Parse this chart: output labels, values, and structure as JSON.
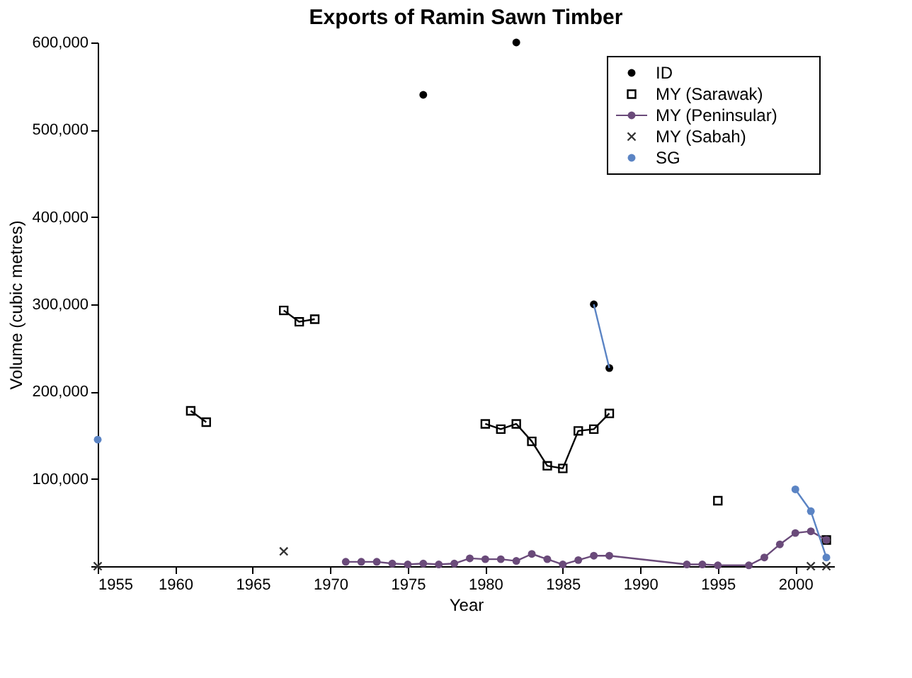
{
  "chart_data": {
    "type": "scatter",
    "title": "Exports of Ramin Sawn Timber",
    "xlabel": "Year",
    "ylabel": "Volume (cubic metres)",
    "xlim": [
      1955,
      2002.5
    ],
    "xticks": [
      1955,
      1960,
      1965,
      1970,
      1975,
      1980,
      1985,
      1990,
      1995,
      2000
    ],
    "ylim": [
      0,
      600000
    ],
    "yticks": [
      {
        "value": 0,
        "label": null
      },
      {
        "value": 100000,
        "label": "100,000"
      },
      {
        "value": 200000,
        "label": "200,000"
      },
      {
        "value": 300000,
        "label": "300,000"
      },
      {
        "value": 400000,
        "label": "400,000"
      },
      {
        "value": 500000,
        "label": "500,000"
      },
      {
        "value": 600000,
        "label": "600,000"
      }
    ],
    "grid": false,
    "legend": "top right",
    "series": [
      {
        "name": "ID",
        "marker": "circle",
        "color": "#000000",
        "x": [
          1976,
          1982,
          1987,
          1988
        ],
        "values": [
          540000,
          600000,
          300000,
          227000
        ]
      },
      {
        "name": "MY (Sarawak)",
        "marker": "square",
        "color": "#000000",
        "x": [
          1961,
          1962,
          1967,
          1968,
          1969,
          1980,
          1981,
          1982,
          1983,
          1984,
          1985,
          1986,
          1987,
          1988,
          1995,
          2002
        ],
        "values": [
          178000,
          165000,
          293000,
          280000,
          283000,
          163000,
          157000,
          163000,
          143000,
          115000,
          112000,
          155000,
          157000,
          175000,
          75000,
          30000
        ]
      },
      {
        "name": "MY (Peninsular)",
        "type": "line",
        "marker": "circle",
        "color": "#6a4a7a",
        "x": [
          1971,
          1972,
          1973,
          1974,
          1975,
          1976,
          1977,
          1978,
          1979,
          1980,
          1981,
          1982,
          1983,
          1984,
          1985,
          1986,
          1987,
          1988,
          1993,
          1994,
          1995,
          1997,
          1998,
          1999,
          2000,
          2001,
          2002
        ],
        "values": [
          5000,
          5000,
          5000,
          3000,
          2000,
          3000,
          2000,
          3000,
          9000,
          8000,
          8000,
          6000,
          14000,
          8000,
          2000,
          7000,
          12000,
          12000,
          2000,
          2000,
          1000,
          1000,
          10000,
          25000,
          38000,
          40000,
          30000
        ]
      },
      {
        "name": "MY (Sabah)",
        "marker": "cross",
        "color": "#333333",
        "x": [
          1955,
          1967,
          2001,
          2002
        ],
        "values": [
          0,
          17000,
          0,
          0
        ]
      },
      {
        "name": "SG",
        "marker": "circle",
        "color": "#5b84c4",
        "x": [
          1955,
          2000,
          2001,
          2002
        ],
        "values": [
          145000,
          88000,
          63000,
          10000
        ]
      },
      {
        "type": "line",
        "marker": "none",
        "color": "#5b84c4",
        "x": [
          1987,
          1988
        ],
        "values": [
          300000,
          227000
        ]
      },
      {
        "type": "line",
        "marker": "none",
        "color": "#000000",
        "x": [
          1961,
          1962
        ],
        "values": [
          178000,
          165000
        ]
      },
      {
        "type": "line",
        "marker": "none",
        "color": "#000000",
        "x": [
          1967,
          1968,
          1969
        ],
        "values": [
          293000,
          280000,
          283000
        ]
      },
      {
        "type": "line",
        "marker": "none",
        "color": "#000000",
        "x": [
          1980,
          1981,
          1982,
          1983,
          1984,
          1985,
          1986,
          1987,
          1988
        ],
        "values": [
          163000,
          157000,
          163000,
          143000,
          115000,
          112000,
          155000,
          157000,
          175000
        ]
      },
      {
        "type": "line",
        "marker": "none",
        "color": "#5b84c4",
        "x": [
          2000,
          2001,
          2002
        ],
        "values": [
          88000,
          63000,
          10000
        ]
      }
    ]
  }
}
